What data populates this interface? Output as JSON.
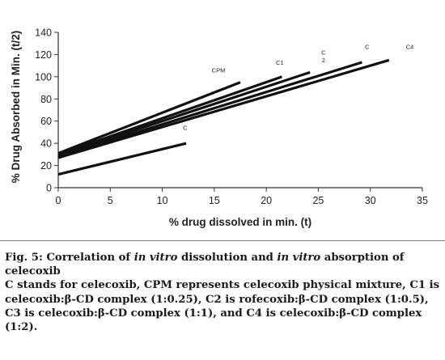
{
  "chart_data": {
    "type": "line",
    "title": "",
    "xlabel": "% drug dissolved in min. (t)",
    "ylabel": "% Drug Absorbed in Min. (t/2)",
    "xlim": [
      0,
      35
    ],
    "ylim": [
      0,
      140
    ],
    "xticks": [
      "0",
      "5",
      "10",
      "15",
      "20",
      "25",
      "30",
      "35"
    ],
    "yticks": [
      "0",
      "20",
      "40",
      "60",
      "80",
      "100",
      "120",
      "140"
    ],
    "grid": false,
    "series": [
      {
        "name": "C",
        "x": [
          0,
          12.3
        ],
        "y": [
          12,
          40
        ]
      },
      {
        "name": "CPM",
        "x": [
          0,
          17.5
        ],
        "y": [
          31,
          95
        ]
      },
      {
        "name": "C1",
        "x": [
          0,
          21.5
        ],
        "y": [
          30,
          100
        ]
      },
      {
        "name": "C2",
        "x": [
          0,
          24.2
        ],
        "y": [
          29,
          104
        ]
      },
      {
        "name": "C3",
        "x": [
          0,
          29.2
        ],
        "y": [
          28,
          113
        ]
      },
      {
        "name": "C4",
        "x": [
          0,
          31.8
        ],
        "y": [
          27,
          115
        ]
      }
    ],
    "series_labels": [
      {
        "text": "C",
        "x": 12.2,
        "y": 52
      },
      {
        "text": "CPM",
        "x": 15.4,
        "y": 104
      },
      {
        "text": "C1",
        "x": 21.3,
        "y": 111
      },
      {
        "text": "C",
        "x": 25.5,
        "y": 120
      },
      {
        "text": "2",
        "x": 25.5,
        "y": 113
      },
      {
        "text": "C",
        "x": 29.7,
        "y": 125
      },
      {
        "text": "C4",
        "x": 33.8,
        "y": 125
      }
    ]
  },
  "caption": {
    "fig_label": "Fig. 5: Correlation of ",
    "fig_italic1": "in vitro",
    "fig_mid": " dissolution and ",
    "fig_italic2": "in vitro",
    "fig_end": " absorption of celecoxib",
    "body": "C stands for celecoxib, CPM represents celecoxib physical mixture, C1 is celecoxib:β-CD complex (1:0.25), C2 is rofecoxib:β-CD complex (1:0.5), C3 is celecoxib:β-CD complex (1:1), and C4 is celecoxib:β-CD complex (1:2)."
  }
}
